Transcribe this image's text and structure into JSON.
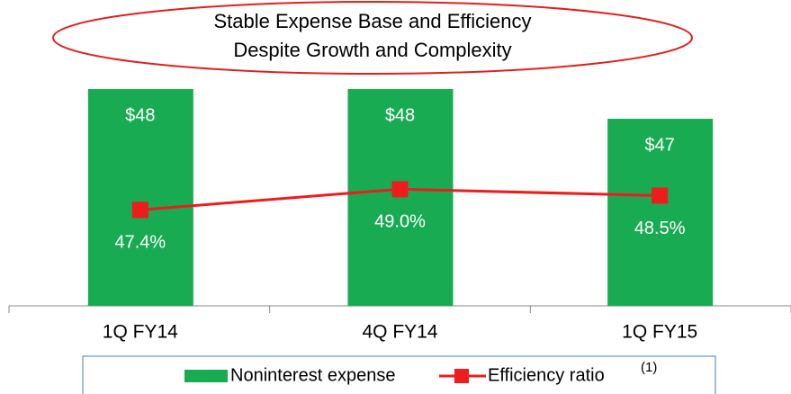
{
  "chart_data": {
    "type": "bar",
    "title": [
      "Stable Expense Base and Efficiency",
      "Despite Growth and Complexity"
    ],
    "categories": [
      "1Q FY14",
      "4Q FY14",
      "1Q FY15"
    ],
    "series": [
      {
        "name": "Noninterest expense",
        "type": "bar",
        "color": "#19ab52",
        "values": [
          48,
          48,
          47
        ],
        "value_labels": [
          "$48",
          "$48",
          "$47"
        ]
      },
      {
        "name": "Efficiency ratio",
        "type": "line",
        "axis": "y2",
        "color": "#ee1c1c",
        "values": [
          47.4,
          49.0,
          48.5
        ],
        "value_labels": [
          "47.4%",
          "49.0%",
          "48.5%"
        ]
      }
    ],
    "legend_note": "(1)",
    "ylim": [
      40.7,
      50
    ],
    "y2lim": [
      40,
      61.3
    ]
  }
}
